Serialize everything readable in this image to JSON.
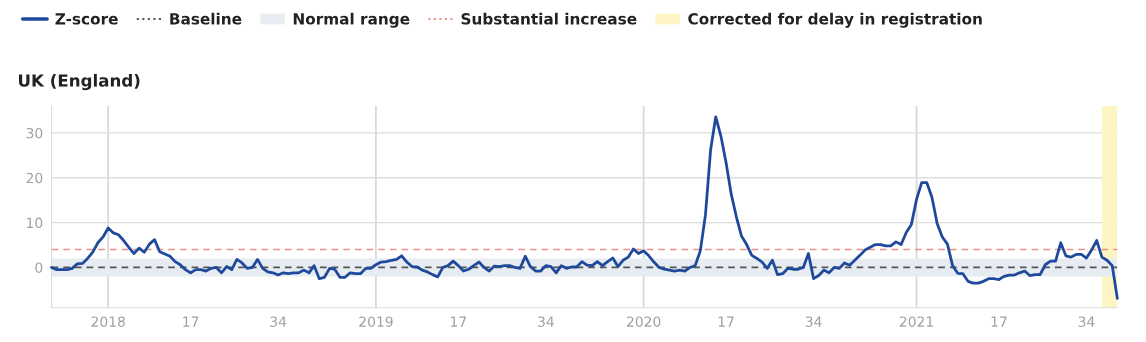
{
  "chart_data": {
    "type": "line",
    "title": "UK (England)",
    "x": [
      "2017-10-19",
      "2017-10-26",
      "2017-11-09",
      "2017-11-16",
      "2017-11-23",
      "2017-11-30",
      "2017-12-07",
      "2017-12-14",
      "2017-12-21",
      "2017-12-28",
      "2018-01-04",
      "2018-01-11",
      "2018-01-18",
      "2018-01-25",
      "2018-02-01",
      "2018-02-08",
      "2018-02-15",
      "2018-02-22",
      "2018-03-01",
      "2018-03-08",
      "2018-03-15",
      "2018-03-22",
      "2018-03-29",
      "2018-04-05",
      "2018-04-12",
      "2018-04-19",
      "2018-04-26",
      "2018-05-03",
      "2018-05-10",
      "2018-05-17",
      "2018-05-24",
      "2018-05-31",
      "2018-06-07",
      "2018-06-14",
      "2018-06-21",
      "2018-06-28",
      "2018-07-05",
      "2018-07-12",
      "2018-07-19",
      "2018-07-26",
      "2018-08-02",
      "2018-08-09",
      "2018-08-16",
      "2018-08-23",
      "2018-08-30",
      "2018-09-06",
      "2018-09-13",
      "2018-09-20",
      "2018-09-27",
      "2018-10-04",
      "2018-10-11",
      "2018-10-18",
      "2018-10-25",
      "2018-11-01",
      "2018-11-08",
      "2018-11-15",
      "2018-11-22",
      "2018-11-29",
      "2018-12-06",
      "2018-12-13",
      "2018-12-20",
      "2018-12-27",
      "2019-01-03",
      "2019-01-10",
      "2019-01-17",
      "2019-01-24",
      "2019-01-31",
      "2019-02-07",
      "2019-02-14",
      "2019-02-21",
      "2019-02-28",
      "2019-03-07",
      "2019-03-14",
      "2019-03-21",
      "2019-03-28",
      "2019-04-04",
      "2019-04-11",
      "2019-04-18",
      "2019-04-25",
      "2019-05-02",
      "2019-05-09",
      "2019-05-16",
      "2019-05-23",
      "2019-05-30",
      "2019-06-06",
      "2019-06-13",
      "2019-06-20",
      "2019-06-27",
      "2019-07-04",
      "2019-07-11",
      "2019-07-18",
      "2019-07-25",
      "2019-08-01",
      "2019-08-08",
      "2019-08-15",
      "2019-08-22",
      "2019-08-29",
      "2019-09-05",
      "2019-09-12",
      "2019-09-19",
      "2019-09-26",
      "2019-10-03",
      "2019-10-10",
      "2019-10-17",
      "2019-10-24",
      "2019-10-31",
      "2019-11-07",
      "2019-11-14",
      "2019-11-21",
      "2019-11-28",
      "2019-12-05",
      "2019-12-12",
      "2019-12-19",
      "2019-12-26",
      "2020-01-02",
      "2020-01-09",
      "2020-01-16",
      "2020-01-23",
      "2020-01-30",
      "2020-02-06",
      "2020-02-13",
      "2020-02-20",
      "2020-02-27",
      "2020-03-05",
      "2020-03-12",
      "2020-03-19",
      "2020-03-26",
      "2020-04-02",
      "2020-04-09",
      "2020-04-16",
      "2020-04-23",
      "2020-04-30",
      "2020-05-07",
      "2020-05-14",
      "2020-05-21",
      "2020-05-28",
      "2020-06-04",
      "2020-06-11",
      "2020-06-18",
      "2020-06-25",
      "2020-07-02",
      "2020-07-09",
      "2020-07-16",
      "2020-07-23",
      "2020-07-30",
      "2020-08-06",
      "2020-08-13",
      "2020-08-20",
      "2020-08-27",
      "2020-09-03",
      "2020-09-10",
      "2020-09-17",
      "2020-09-24",
      "2020-10-01",
      "2020-10-08",
      "2020-10-15",
      "2020-10-22",
      "2020-10-29",
      "2020-11-05",
      "2020-11-12",
      "2020-11-19",
      "2020-11-26",
      "2020-12-03",
      "2020-12-10",
      "2020-12-17",
      "2020-12-24",
      "2020-12-31",
      "2021-01-07",
      "2021-01-14",
      "2021-01-21",
      "2021-01-28",
      "2021-02-04",
      "2021-02-11",
      "2021-02-18",
      "2021-02-25",
      "2021-03-04",
      "2021-03-11",
      "2021-03-18",
      "2021-03-25",
      "2021-04-01",
      "2021-04-08",
      "2021-04-15",
      "2021-04-22",
      "2021-04-29",
      "2021-05-06",
      "2021-05-13",
      "2021-05-20",
      "2021-05-27",
      "2021-06-03",
      "2021-06-10",
      "2021-06-17",
      "2021-06-24",
      "2021-07-01",
      "2021-07-08",
      "2021-07-15",
      "2021-07-22",
      "2021-07-29",
      "2021-08-05",
      "2021-08-12",
      "2021-08-19",
      "2021-08-26",
      "2021-09-02",
      "2021-09-09",
      "2021-09-16",
      "2021-09-23",
      "2021-09-30",
      "2021-10-07"
    ],
    "series": [
      {
        "name": "Z-score",
        "color": "#1f4a9c",
        "values": [
          0,
          -0.5,
          -0.5,
          -0.2,
          0.8,
          0.9,
          2,
          3.4,
          5.5,
          6.8,
          8.8,
          7.7,
          7.3,
          6,
          4.5,
          3.1,
          4.3,
          3.4,
          5.2,
          6.2,
          3.5,
          3.0,
          2.5,
          1.3,
          0.6,
          -0.5,
          -1.2,
          -0.5,
          -0.5,
          -0.8,
          -0.2,
          0,
          -1.2,
          0.2,
          -0.5,
          1.8,
          1,
          -0.2,
          0,
          1.8,
          -0.2,
          -1,
          -1.2,
          -1.7,
          -1.2,
          -1.4,
          -1.2,
          -1.2,
          -0.6,
          -1.2,
          0.4,
          -2.5,
          -2.2,
          -0.2,
          -0.4,
          -2.2,
          -2.2,
          -1.2,
          -1.4,
          -1.4,
          -0.2,
          -0.2,
          0.6,
          1.2,
          1.3,
          1.6,
          1.8,
          2.6,
          1.2,
          0.2,
          0.1,
          -0.6,
          -1,
          -1.6,
          -2.1,
          0,
          0.4,
          1.4,
          0.4,
          -0.8,
          -0.4,
          0.4,
          1.2,
          0,
          -0.8,
          0.3,
          0.2,
          0.4,
          0.4,
          0,
          -0.2,
          2.5,
          0.2,
          -0.8,
          -0.8,
          0.4,
          0.2,
          -1.2,
          0.4,
          -0.2,
          0.1,
          0.1,
          1.3,
          0.5,
          0.4,
          1.3,
          0.4,
          1.3,
          2.1,
          0.2,
          1.6,
          2.3,
          4.1,
          3.1,
          3.7,
          2.6,
          1.2,
          0,
          -0.4,
          -0.6,
          -0.8,
          -0.6,
          -0.8,
          0,
          0.4,
          3.7,
          11.7,
          26.2,
          33.6,
          29.3,
          23.4,
          16.4,
          11.3,
          7,
          5.1,
          2.7,
          2,
          1.2,
          -0.2,
          1.6,
          -1.6,
          -1.4,
          -0.2,
          -0.4,
          -0.4,
          0,
          3.1,
          -2.5,
          -1.8,
          -0.6,
          -1.2,
          0,
          -0.2,
          1,
          0.5,
          1.6,
          2.7,
          3.9,
          4.5,
          5.1,
          5.1,
          4.8,
          4.8,
          5.7,
          5.1,
          7.8,
          9.6,
          15.2,
          18.9,
          18.9,
          15.6,
          9.8,
          6.8,
          5.2,
          0.4,
          -1.3,
          -1.4,
          -3.1,
          -3.5,
          -3.5,
          -3.1,
          -2.5,
          -2.5,
          -2.7,
          -2,
          -1.7,
          -1.7,
          -1.2,
          -0.8,
          -1.8,
          -1.6,
          -1.6,
          0.6,
          1.4,
          1.4,
          5.5,
          2.6,
          2.3,
          2.9,
          2.9,
          2.1,
          3.9,
          6,
          2.3,
          1.6,
          0.4,
          -6.9
        ]
      }
    ],
    "xlim": [
      "2017-10-19",
      "2021-10-07"
    ],
    "ylim": [
      -9,
      36
    ],
    "xticks": [
      {
        "value": "2018-01-04",
        "label": "2018"
      },
      {
        "value": "2018-04-26",
        "label": "17"
      },
      {
        "value": "2018-08-23",
        "label": "34"
      },
      {
        "value": "2019-01-03",
        "label": "2019"
      },
      {
        "value": "2019-04-25",
        "label": "17"
      },
      {
        "value": "2019-08-22",
        "label": "34"
      },
      {
        "value": "2020-01-02",
        "label": "2020"
      },
      {
        "value": "2020-04-23",
        "label": "17"
      },
      {
        "value": "2020-08-20",
        "label": "34"
      },
      {
        "value": "2021-01-07",
        "label": "2021"
      },
      {
        "value": "2021-04-29",
        "label": "17"
      },
      {
        "value": "2021-08-26",
        "label": "34"
      }
    ],
    "yticks": [
      0,
      10,
      20,
      30
    ],
    "grid": "y",
    "ref_lines": [
      {
        "axis": "x",
        "value": "2018-01-04",
        "color": "#d6d6d6",
        "line_style": "solid"
      },
      {
        "axis": "x",
        "value": "2019-01-03",
        "color": "#d6d6d6",
        "line_style": "solid"
      },
      {
        "axis": "x",
        "value": "2020-01-02",
        "color": "#d6d6d6",
        "line_style": "solid"
      },
      {
        "axis": "x",
        "value": "2021-01-07",
        "color": "#d6d6d6",
        "line_style": "solid"
      },
      {
        "axis": "y",
        "value": 0,
        "label": "Baseline",
        "color": "#555555",
        "line_style": "dashed"
      },
      {
        "axis": "y",
        "value": 4,
        "label": "Substantial increase",
        "color": "#e8928c",
        "line_style": "dashed"
      }
    ],
    "bands": [
      {
        "axis": "y",
        "from": -2,
        "to": 2,
        "label": "Normal range",
        "color": "#e6ecf1"
      },
      {
        "axis": "x",
        "from": "2021-09-16",
        "to": "2021-10-07",
        "label": "Corrected for delay in registration",
        "color": "#fdf5c4"
      }
    ],
    "legend": "top left",
    "line_style": "solid",
    "marker": "none"
  }
}
